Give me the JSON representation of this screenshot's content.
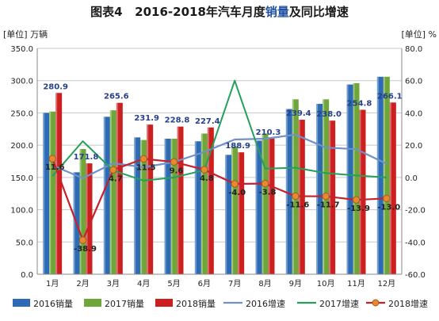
{
  "header": {
    "figure_label": "图表4",
    "title_prefix": "2016-2018年汽车月度",
    "title_highlight": "销量",
    "title_suffix": "及同比增速"
  },
  "axes": {
    "left_unit": "[单位] 万辆",
    "right_unit": "[单位] %"
  },
  "colors": {
    "s2016": "#2e6bb5",
    "s2017": "#6ea63a",
    "s2018": "#cc1f1f",
    "g2016": "#6f92c9",
    "g2017": "#25a05a",
    "g2018": "#c8202a",
    "g2018_marker": "#e8892f",
    "plot_bg": "#ffffff",
    "grid": "#c8c8c8",
    "data_label": "#27408b"
  },
  "chart_data": {
    "type": "bar",
    "categories": [
      "1月",
      "2月",
      "3月",
      "4月",
      "5月",
      "6月",
      "7月",
      "8月",
      "9月",
      "10月",
      "11月",
      "12月"
    ],
    "y_left": {
      "min": 0,
      "max": 350,
      "ticks": [
        "0.0",
        "50.0",
        "100.0",
        "150.0",
        "200.0",
        "250.0",
        "300.0",
        "350.0"
      ]
    },
    "y_right": {
      "min": -60,
      "max": 80,
      "ticks": [
        "-60.0",
        "-40.0",
        "-20.0",
        "0.0",
        "20.0",
        "40.0",
        "60.0",
        "80.0"
      ]
    },
    "grid": true,
    "legend_position": "bottom",
    "bar_series": [
      {
        "name": "2016销量",
        "values": [
          250,
          158,
          244,
          212,
          210,
          206,
          185,
          207,
          256,
          264,
          294,
          306
        ]
      },
      {
        "name": "2017销量",
        "values": [
          252,
          194,
          254,
          208,
          210,
          218,
          198,
          218,
          271,
          271,
          296,
          306
        ]
      },
      {
        "name": "2018销量",
        "values": [
          280.9,
          171.8,
          265.6,
          231.9,
          228.8,
          227.4,
          188.9,
          210.3,
          239.4,
          238.0,
          254.8,
          266.1
        ]
      }
    ],
    "bar_labels": [
      "280.9",
      "171.8",
      "265.6",
      "231.9",
      "228.8",
      "227.4",
      "188.9",
      "210.3",
      "239.4",
      "238.0",
      "254.8",
      "266.1"
    ],
    "line_series": [
      {
        "name": "2016增速",
        "axis": "right",
        "values": [
          7.5,
          -0.5,
          8.8,
          6.3,
          9.5,
          15.8,
          23.5,
          24.0,
          26.5,
          18.5,
          17.5,
          8.5
        ]
      },
      {
        "name": "2017增速",
        "axis": "right",
        "values": [
          0.8,
          22.5,
          4.3,
          -2.0,
          0.0,
          4.5,
          60.0,
          5.5,
          6.0,
          2.7,
          1.2,
          0.0
        ]
      },
      {
        "name": "2018增速",
        "axis": "right",
        "values": [
          11.6,
          -38.9,
          4.7,
          11.5,
          9.6,
          4.8,
          -4.0,
          -3.8,
          -11.6,
          -11.7,
          -13.9,
          -13.0
        ]
      }
    ],
    "growth_labels": [
      "11.6",
      "-38.9",
      "4.7",
      "11.5",
      "9.6",
      "4.8",
      "-4.0",
      "-3.8",
      "-11.6",
      "-11.7",
      "-13.9",
      "-13.0"
    ]
  }
}
